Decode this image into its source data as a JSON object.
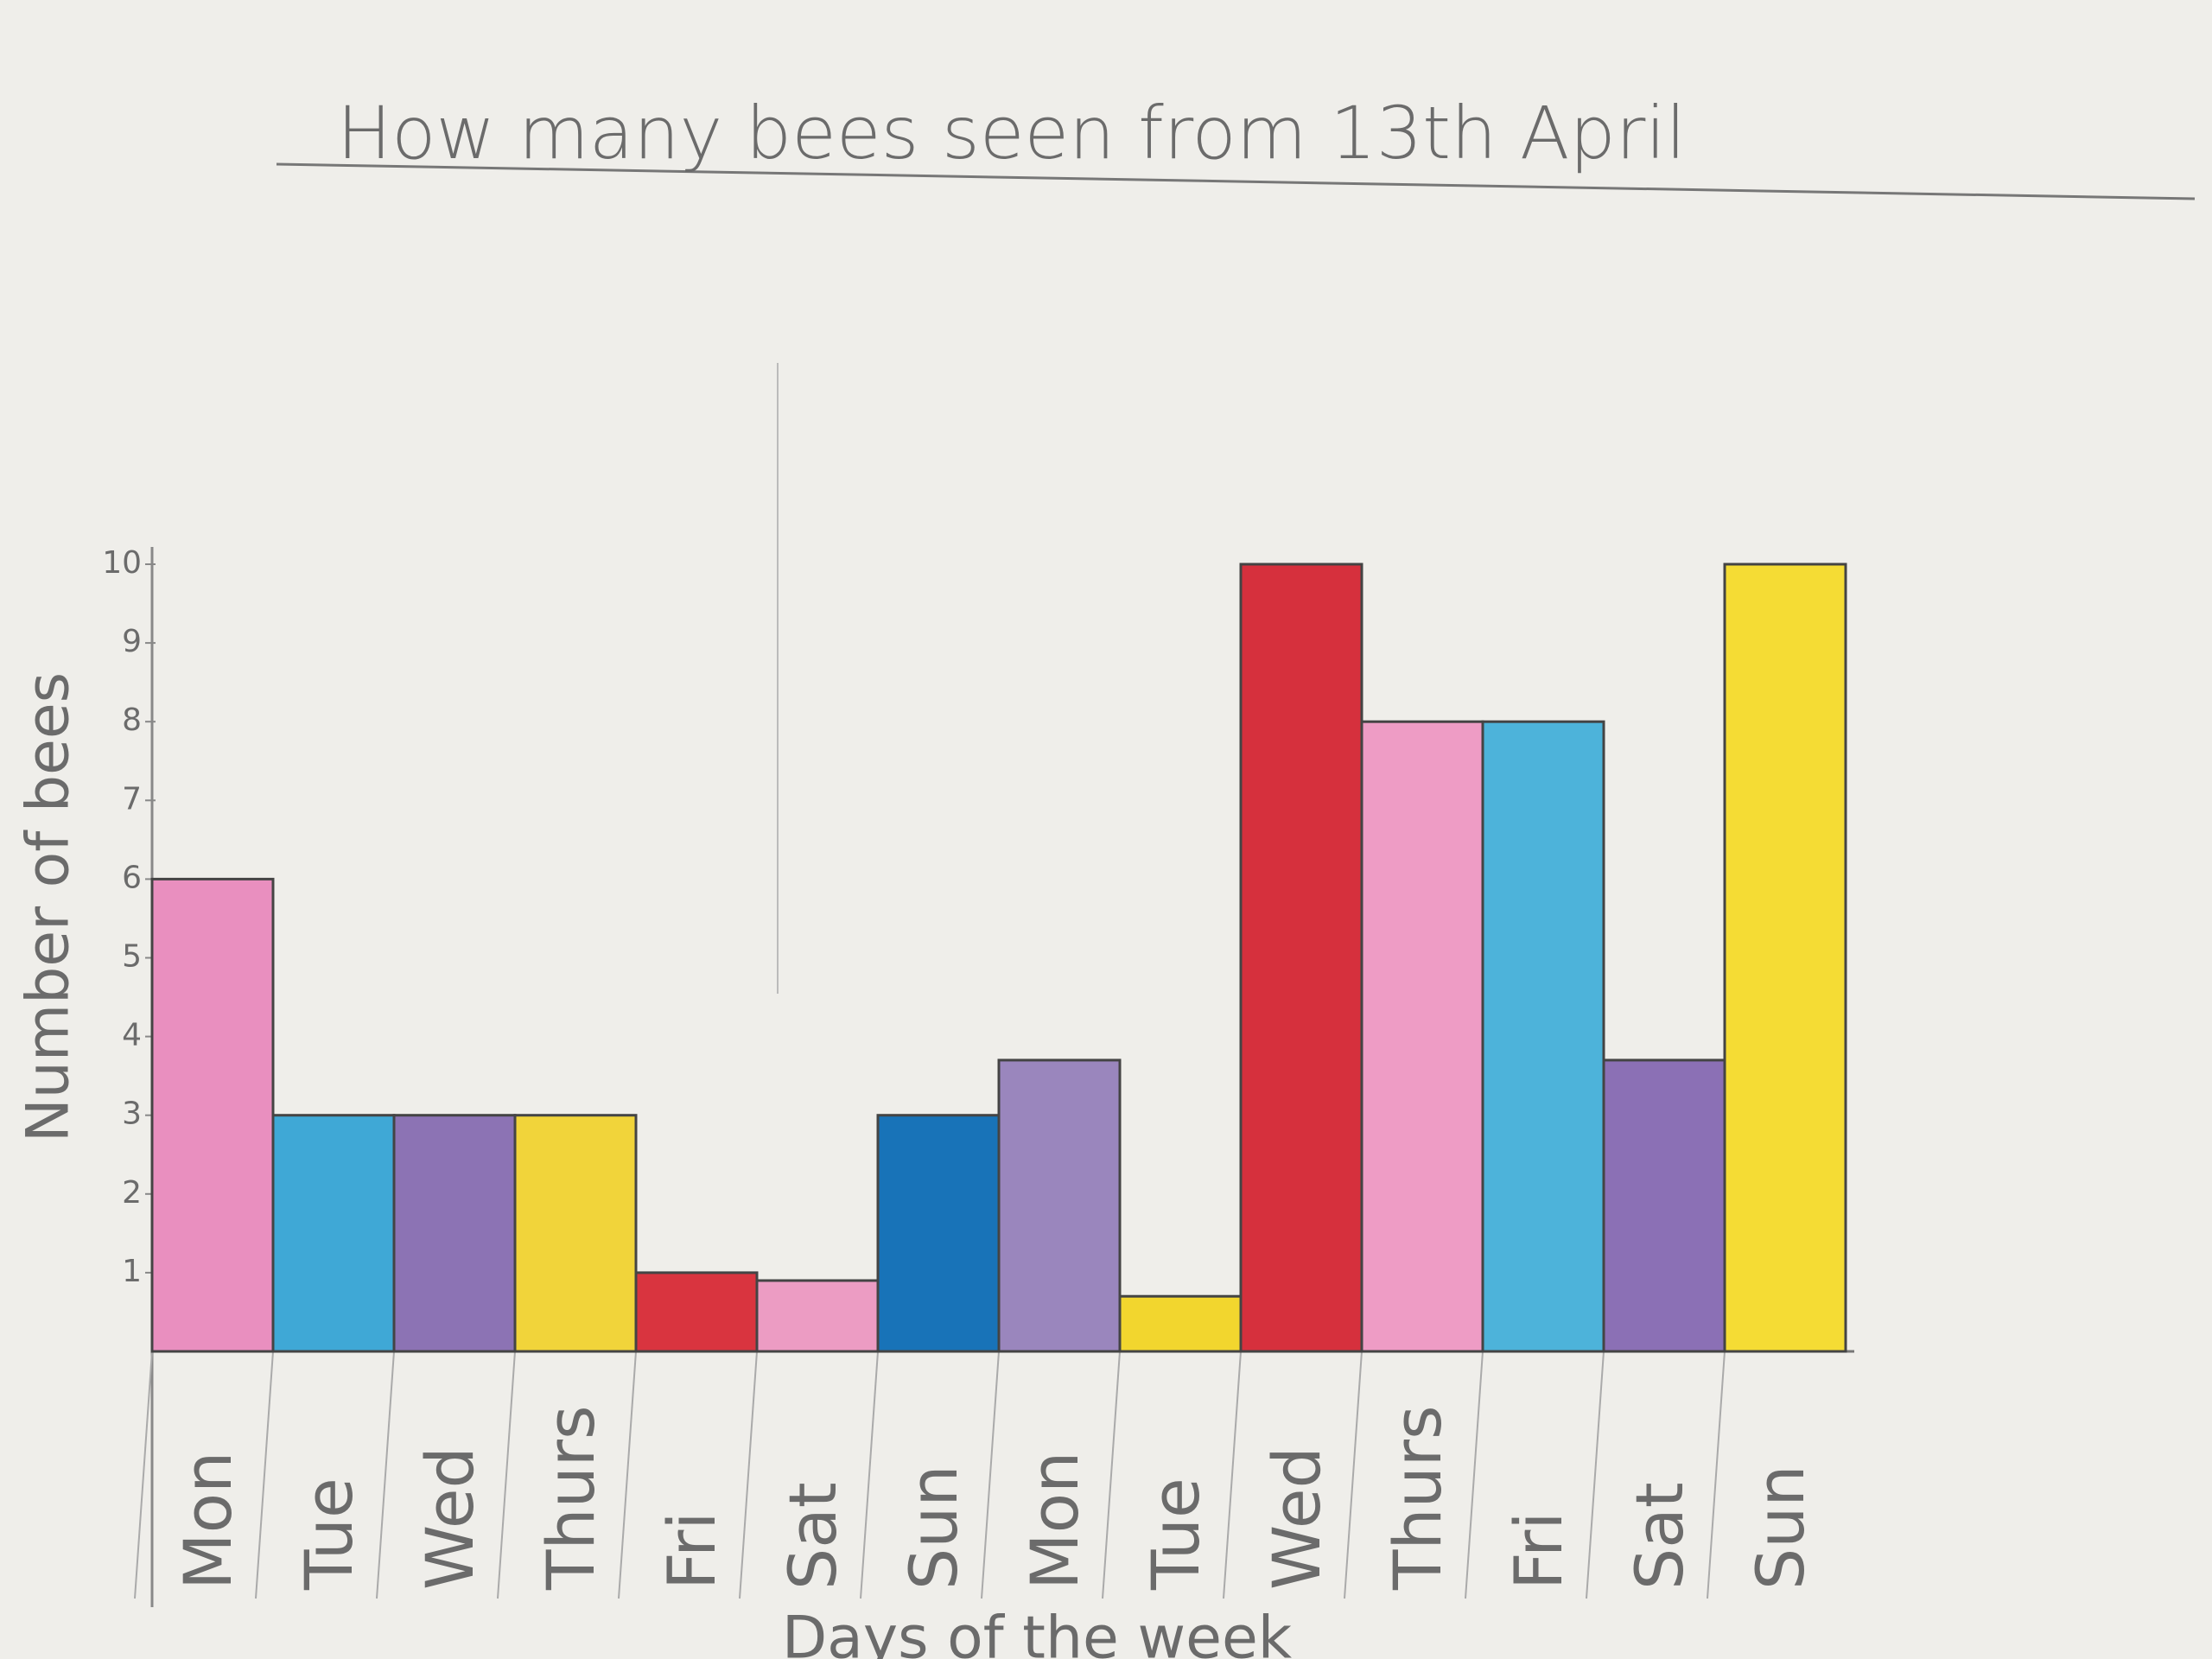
{
  "chart_data": {
    "type": "bar",
    "title": "How many bees seen from 13th April",
    "y_label": "Number of bees",
    "x_label": "Days of the week",
    "categories": [
      "Mon",
      "Tue",
      "Wed",
      "Thurs",
      "Fri",
      "Sat",
      "Sun",
      "Mon",
      "Tue",
      "Wed",
      "Thurs",
      "Fri",
      "Sat",
      "Sun"
    ],
    "values": [
      6,
      3,
      3,
      3,
      1,
      0.9,
      3,
      3.7,
      0.7,
      10,
      8,
      8,
      3.7,
      10
    ],
    "colors": [
      "#e98fbf",
      "#3fa8d6",
      "#8c73b4",
      "#f1d43a",
      "#d9343f",
      "#ec9cc3",
      "#1873b8",
      "#9a86bd",
      "#f2d62e",
      "#d6303d",
      "#ee9cc5",
      "#4db3da",
      "#8b70b5",
      "#f5dc34"
    ],
    "ylim": [
      0,
      10
    ],
    "yticks": [
      1,
      2,
      3,
      4,
      5,
      6,
      7,
      8,
      9,
      10
    ]
  }
}
